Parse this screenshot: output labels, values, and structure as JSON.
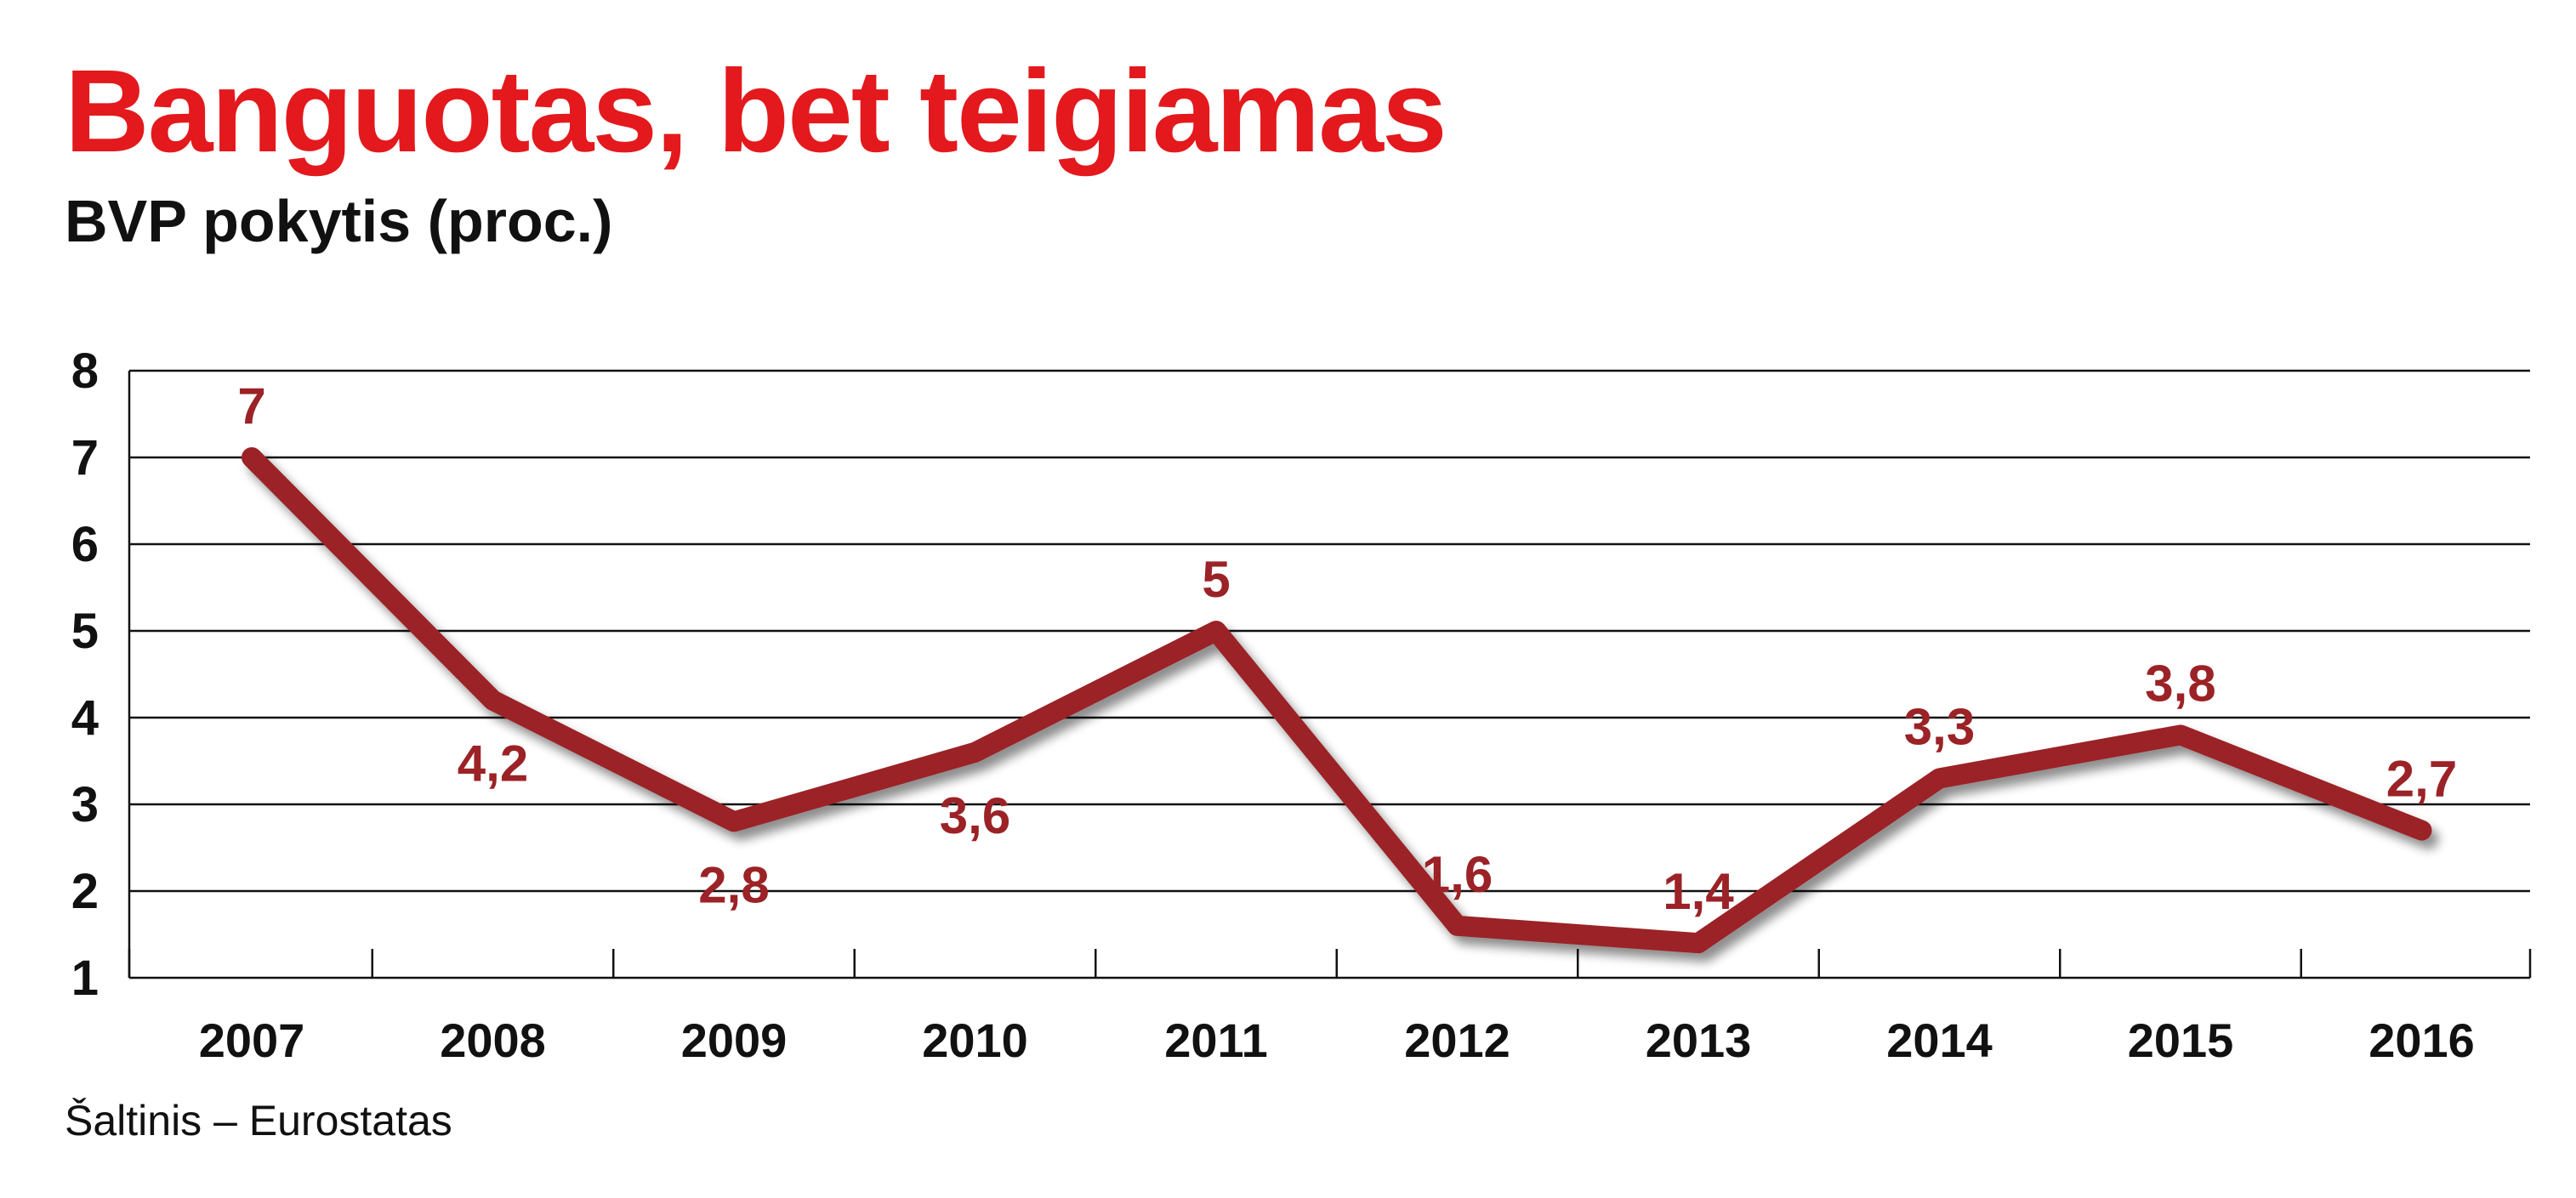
{
  "chart_data": {
    "type": "line",
    "title": "Banguotas, bet teigiamas",
    "subtitle": "BVP pokytis (proc.)",
    "source": "Šaltinis – Eurostatas",
    "categories": [
      "2007",
      "2008",
      "2009",
      "2010",
      "2011",
      "2012",
      "2013",
      "2014",
      "2015",
      "2016"
    ],
    "values": [
      7,
      4.2,
      2.8,
      3.6,
      5,
      1.6,
      1.4,
      3.3,
      3.8,
      2.7
    ],
    "data_labels": [
      "7",
      "4,2",
      "2,8",
      "3,6",
      "5",
      "1,6",
      "1,4",
      "3,3",
      "3,8",
      "2,7"
    ],
    "label_position": [
      "above",
      "below",
      "below",
      "below",
      "above",
      "above",
      "above",
      "above",
      "above",
      "above"
    ],
    "yticks": [
      "1",
      "2",
      "3",
      "4",
      "5",
      "6",
      "7",
      "8"
    ],
    "ylim": [
      1,
      8
    ],
    "grid": true,
    "line_color": "#9b2226",
    "title_color": "#e3191d"
  }
}
